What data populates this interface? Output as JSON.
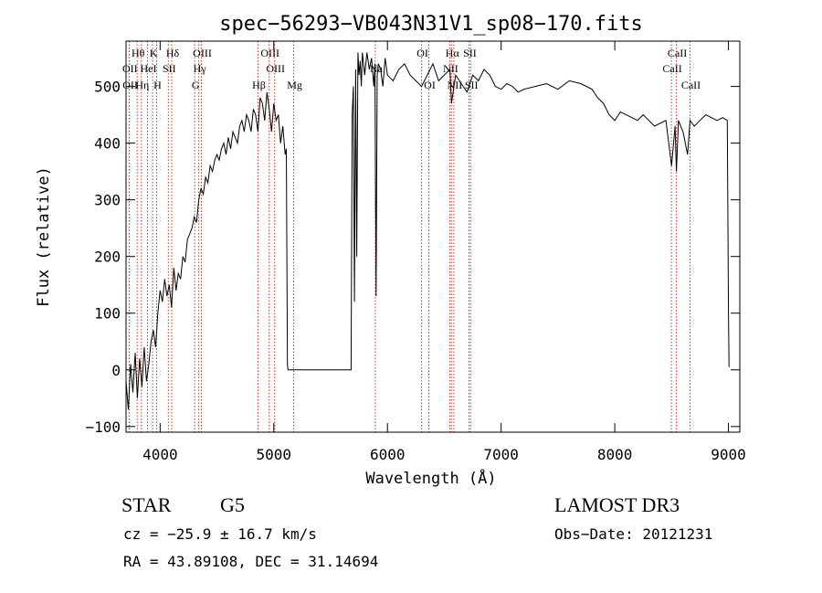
{
  "chart_data": {
    "type": "line",
    "title": "spec−56293−VB043N31V1_sp08−170.fits",
    "xlabel": "Wavelength (Å)",
    "ylabel": "Flux (relative)",
    "xlim": [
      3700,
      9100
    ],
    "ylim": [
      -110,
      580
    ],
    "xticks": [
      4000,
      5000,
      6000,
      7000,
      8000,
      9000
    ],
    "yticks": [
      -100,
      0,
      100,
      200,
      300,
      400,
      500
    ],
    "x_tick_labels": [
      "4000",
      "5000",
      "6000",
      "7000",
      "8000",
      "9000"
    ],
    "y_tick_labels": [
      "−100",
      "0",
      "100",
      "200",
      "300",
      "400",
      "500"
    ],
    "series": [
      {
        "x": [
          3700,
          3720,
          3740,
          3760,
          3780,
          3800,
          3820,
          3840,
          3860,
          3880,
          3900,
          3920,
          3940,
          3960,
          3980,
          4000,
          4020,
          4040,
          4060,
          4080,
          4100,
          4120,
          4140,
          4160,
          4180,
          4200,
          4220,
          4240,
          4260,
          4280,
          4300,
          4320,
          4340,
          4360,
          4380,
          4400,
          4420,
          4440,
          4460,
          4480,
          4500,
          4520,
          4540,
          4560,
          4580,
          4600,
          4620,
          4640,
          4660,
          4680,
          4700,
          4720,
          4740,
          4760,
          4780,
          4800,
          4820,
          4840,
          4860,
          4880,
          4900,
          4920,
          4940,
          4960,
          4980,
          5000,
          5020,
          5040,
          5060,
          5080,
          5100,
          5110,
          5120,
          5125,
          5130,
          5140,
          5200,
          5300,
          5400,
          5500,
          5600,
          5680,
          5690,
          5700,
          5710,
          5720,
          5730,
          5740,
          5750,
          5760,
          5770,
          5780,
          5800,
          5820,
          5840,
          5860,
          5880,
          5890,
          5900,
          5910,
          5920,
          5940,
          5960,
          5980,
          6000,
          6050,
          6100,
          6150,
          6200,
          6250,
          6300,
          6350,
          6400,
          6450,
          6500,
          6550,
          6563,
          6600,
          6650,
          6700,
          6750,
          6800,
          6850,
          6900,
          6950,
          7000,
          7050,
          7100,
          7150,
          7200,
          7300,
          7400,
          7500,
          7600,
          7700,
          7800,
          7850,
          7900,
          7950,
          8000,
          8050,
          8100,
          8150,
          8200,
          8250,
          8300,
          8350,
          8400,
          8450,
          8500,
          8530,
          8542,
          8560,
          8600,
          8640,
          8662,
          8680,
          8700,
          8750,
          8800,
          8850,
          8900,
          8950,
          8990,
          9000,
          9005
        ],
        "y": [
          -20,
          -70,
          10,
          -40,
          30,
          -50,
          20,
          -30,
          40,
          -20,
          10,
          50,
          70,
          40,
          100,
          140,
          120,
          160,
          130,
          150,
          110,
          180,
          140,
          170,
          160,
          200,
          190,
          230,
          240,
          250,
          270,
          260,
          300,
          320,
          310,
          340,
          330,
          360,
          350,
          370,
          380,
          370,
          390,
          400,
          380,
          410,
          390,
          420,
          410,
          400,
          430,
          440,
          420,
          450,
          440,
          420,
          460,
          450,
          420,
          480,
          470,
          440,
          490,
          460,
          420,
          470,
          440,
          450,
          400,
          430,
          380,
          390,
          10,
          0,
          0,
          0,
          0,
          0,
          0,
          0,
          0,
          0,
          450,
          500,
          120,
          530,
          200,
          560,
          520,
          545,
          500,
          560,
          520,
          560,
          530,
          550,
          500,
          540,
          130,
          520,
          540,
          530,
          500,
          550,
          520,
          510,
          530,
          540,
          520,
          510,
          500,
          520,
          540,
          510,
          520,
          530,
          470,
          520,
          505,
          490,
          520,
          510,
          530,
          520,
          500,
          495,
          505,
          500,
          490,
          495,
          500,
          505,
          495,
          510,
          505,
          495,
          480,
          470,
          450,
          440,
          455,
          450,
          445,
          440,
          450,
          440,
          430,
          435,
          440,
          360,
          430,
          350,
          440,
          420,
          380,
          440,
          435,
          430,
          440,
          450,
          445,
          440,
          445,
          440,
          100,
          5
        ]
      }
    ],
    "line_marks": [
      {
        "label": "OII",
        "wavelength": 3727,
        "row": 2
      },
      {
        "label": "Hθ",
        "wavelength": 3798,
        "row": 1
      },
      {
        "label": "OII",
        "wavelength": 3729,
        "row": 3
      },
      {
        "label": "Hη",
        "wavelength": 3835,
        "row": 3
      },
      {
        "label": "HeI",
        "wavelength": 3889,
        "row": 2
      },
      {
        "label": "K",
        "wavelength": 3934,
        "row": 1
      },
      {
        "label": "H",
        "wavelength": 3969,
        "row": 3
      },
      {
        "label": "SII",
        "wavelength": 4072,
        "row": 2
      },
      {
        "label": "Hδ",
        "wavelength": 4102,
        "row": 1
      },
      {
        "label": "OIII",
        "wavelength": 4363,
        "row": 1
      },
      {
        "label": "Hγ",
        "wavelength": 4340,
        "row": 2
      },
      {
        "label": "G",
        "wavelength": 4304,
        "row": 3
      },
      {
        "label": "Hβ",
        "wavelength": 4861,
        "row": 3
      },
      {
        "label": "OIII",
        "wavelength": 4959,
        "row": 1
      },
      {
        "label": "OIII",
        "wavelength": 5007,
        "row": 2
      },
      {
        "label": "Mg",
        "wavelength": 5175,
        "row": 3
      },
      {
        "label": "Na",
        "wavelength": 5893,
        "row": 2
      },
      {
        "label": "OI",
        "wavelength": 6300,
        "row": 1
      },
      {
        "label": "OI",
        "wavelength": 6364,
        "row": 3
      },
      {
        "label": "Hα",
        "wavelength": 6563,
        "row": 1
      },
      {
        "label": "NII",
        "wavelength": 6584,
        "row": 3
      },
      {
        "label": "SII",
        "wavelength": 6717,
        "row": 1
      },
      {
        "label": "SII",
        "wavelength": 6731,
        "row": 3
      },
      {
        "label": "NII",
        "wavelength": 6548,
        "row": 2
      },
      {
        "label": "CaII",
        "wavelength": 8498,
        "row": 2
      },
      {
        "label": "CaII",
        "wavelength": 8542,
        "row": 1
      },
      {
        "label": "CaII",
        "wavelength": 8662,
        "row": 3
      }
    ],
    "line_mark_color": "#c0392b",
    "grid": false,
    "legend": "none"
  },
  "info": {
    "object_class": "STAR",
    "subclass": "G5",
    "survey": "LAMOST DR3",
    "velocity": "cz = −25.9 ± 16.7 km/s",
    "obs_date": "Obs−Date: 20121231",
    "coords": "RA =  43.89108, DEC =  31.14694"
  }
}
